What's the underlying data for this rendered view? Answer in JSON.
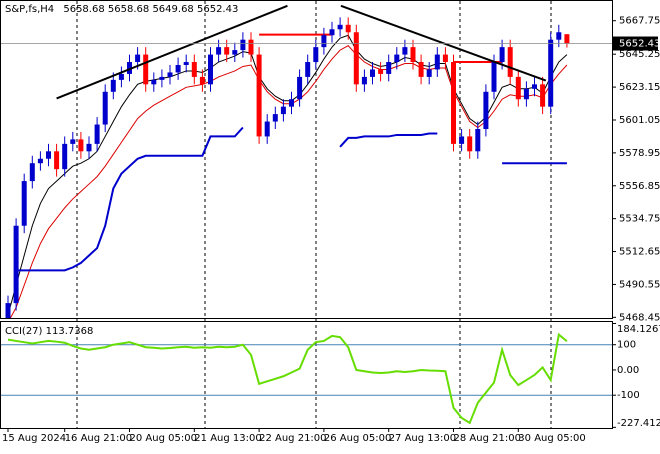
{
  "chart_data": [
    {
      "type": "candlestick",
      "title": "S&P,fs,H4",
      "categories": [
        "15 Aug 2024",
        null,
        null,
        null,
        null,
        null,
        null,
        "16 Aug 21:00",
        null,
        null,
        null,
        null,
        null,
        null,
        null,
        "20 Aug 05:00",
        null,
        null,
        null,
        null,
        null,
        null,
        null,
        "21 Aug 13:00",
        null,
        null,
        null,
        null,
        null,
        null,
        null,
        "22 Aug 21:00",
        null,
        null,
        null,
        null,
        null,
        null,
        null,
        "26 Aug 05:00",
        null,
        null,
        null,
        null,
        null,
        null,
        null,
        "27 Aug 13:00",
        null,
        null,
        null,
        null,
        null,
        null,
        null,
        "28 Aug 21:00",
        null,
        null,
        null,
        null,
        null,
        null,
        null,
        "30 Aug 05:00",
        null,
        null,
        null,
        null,
        null,
        null
      ],
      "open": [
        5465,
        5478,
        5530,
        5560,
        5572,
        5575,
        5580,
        5568,
        5585,
        5588,
        5580,
        5585,
        5598,
        5620,
        5628,
        5632,
        5640,
        5645,
        5625,
        5628,
        5630,
        5633,
        5638,
        5640,
        5630,
        5625,
        5645,
        5650,
        5645,
        5648,
        5655,
        5645,
        5590,
        5600,
        5605,
        5610,
        5615,
        5630,
        5640,
        5650,
        5658,
        5662,
        5665,
        5660,
        5625,
        5630,
        5635,
        5632,
        5640,
        5645,
        5650,
        5640,
        5630,
        5635,
        5645,
        5640,
        5585,
        5590,
        5580,
        5595,
        5620,
        5640,
        5650,
        5630,
        5615,
        5622,
        5625,
        5610,
        5655,
        5658.68
      ],
      "high": [
        5483,
        5535,
        5565,
        5577,
        5580,
        5585,
        5585,
        5590,
        5593,
        5593,
        5590,
        5603,
        5625,
        5633,
        5637,
        5645,
        5650,
        5650,
        5633,
        5635,
        5638,
        5643,
        5645,
        5645,
        5635,
        5650,
        5655,
        5655,
        5653,
        5660,
        5660,
        5650,
        5605,
        5610,
        5615,
        5620,
        5635,
        5645,
        5655,
        5663,
        5667,
        5670,
        5670,
        5665,
        5635,
        5640,
        5640,
        5645,
        5650,
        5655,
        5655,
        5645,
        5640,
        5650,
        5650,
        5645,
        5595,
        5595,
        5600,
        5625,
        5645,
        5655,
        5655,
        5635,
        5627,
        5630,
        5630,
        5660,
        5665,
        5658.68
      ],
      "low": [
        5460,
        5473,
        5525,
        5555,
        5567,
        5570,
        5563,
        5563,
        5580,
        5575,
        5575,
        5580,
        5593,
        5615,
        5623,
        5627,
        5635,
        5620,
        5620,
        5623,
        5625,
        5628,
        5633,
        5625,
        5620,
        5620,
        5640,
        5640,
        5640,
        5643,
        5640,
        5585,
        5585,
        5595,
        5600,
        5605,
        5610,
        5625,
        5635,
        5645,
        5653,
        5657,
        5655,
        5620,
        5620,
        5625,
        5627,
        5627,
        5635,
        5640,
        5635,
        5625,
        5625,
        5630,
        5635,
        5580,
        5580,
        5575,
        5575,
        5590,
        5615,
        5635,
        5625,
        5610,
        5610,
        5617,
        5605,
        5605,
        5650,
        5649.68
      ],
      "close": [
        5478,
        5530,
        5560,
        5572,
        5575,
        5580,
        5568,
        5585,
        5588,
        5580,
        5585,
        5598,
        5620,
        5628,
        5632,
        5640,
        5645,
        5625,
        5628,
        5630,
        5633,
        5638,
        5640,
        5630,
        5625,
        5645,
        5650,
        5645,
        5648,
        5655,
        5645,
        5590,
        5600,
        5605,
        5610,
        5615,
        5630,
        5640,
        5650,
        5658,
        5662,
        5665,
        5660,
        5625,
        5630,
        5635,
        5632,
        5640,
        5645,
        5650,
        5640,
        5630,
        5635,
        5645,
        5640,
        5585,
        5590,
        5580,
        5595,
        5620,
        5640,
        5650,
        5630,
        5615,
        5622,
        5625,
        5610,
        5655,
        5660,
        5652.43
      ],
      "up_color": "#0000cd",
      "down_color": "#ff0000",
      "overlays": [
        {
          "color": "#000000",
          "values": [
            5470,
            5490,
            5510,
            5530,
            5545,
            5555,
            5560,
            5565,
            5570,
            5572,
            5575,
            5580,
            5590,
            5600,
            5610,
            5618,
            5625,
            5627,
            5628,
            5629,
            5630,
            5632,
            5634,
            5634,
            5633,
            5636,
            5640,
            5642,
            5644,
            5647,
            5646,
            5630,
            5622,
            5617,
            5614,
            5614,
            5618,
            5625,
            5633,
            5642,
            5650,
            5656,
            5658,
            5648,
            5642,
            5639,
            5637,
            5638,
            5640,
            5643,
            5642,
            5638,
            5637,
            5639,
            5639,
            5622,
            5612,
            5602,
            5598,
            5603,
            5613,
            5623,
            5625,
            5622,
            5622,
            5623,
            5619,
            5630,
            5640,
            5645
          ]
        },
        {
          "color": "#dd0000",
          "values": [
            5465,
            5475,
            5490,
            5505,
            5518,
            5528,
            5535,
            5542,
            5548,
            5553,
            5558,
            5563,
            5570,
            5578,
            5586,
            5594,
            5602,
            5607,
            5611,
            5614,
            5617,
            5620,
            5623,
            5624,
            5625,
            5627,
            5630,
            5632,
            5634,
            5637,
            5638,
            5628,
            5620,
            5615,
            5612,
            5612,
            5615,
            5620,
            5627,
            5635,
            5642,
            5648,
            5651,
            5645,
            5640,
            5637,
            5635,
            5635,
            5637,
            5639,
            5639,
            5636,
            5635,
            5636,
            5636,
            5620,
            5610,
            5600,
            5596,
            5600,
            5607,
            5615,
            5618,
            5617,
            5617,
            5618,
            5616,
            5625,
            5632,
            5638
          ]
        },
        {
          "color": "#0000cd",
          "values": [
            null,
            5500,
            5500,
            5500,
            5500,
            5500,
            5500,
            5500,
            5502,
            5505,
            5510,
            5515,
            5530,
            5555,
            5565,
            5570,
            5575,
            5577,
            5577,
            5577,
            5577,
            5577,
            5577,
            5577,
            5577,
            5590,
            5590,
            5590,
            5590,
            5596,
            null,
            null,
            null,
            null,
            null,
            null,
            null,
            null,
            null,
            null,
            null,
            5583,
            5589,
            5589,
            5590,
            5590,
            5590,
            5590,
            5591,
            5591,
            5591,
            5591,
            5592,
            5592,
            null,
            null,
            null,
            null,
            null,
            null,
            null,
            5572,
            5572,
            5572,
            5572,
            5572,
            5572,
            5572,
            5572,
            5572
          ]
        },
        {
          "color": "#ff0000",
          "values": [
            null,
            null,
            null,
            null,
            null,
            null,
            null,
            null,
            null,
            null,
            null,
            null,
            null,
            null,
            null,
            null,
            null,
            null,
            null,
            null,
            null,
            null,
            null,
            null,
            null,
            null,
            null,
            null,
            null,
            null,
            null,
            5658.4,
            5658.4,
            5658.4,
            5658.4,
            5658.4,
            5658.4,
            5658.4,
            5658.4,
            5658.4,
            5658.4,
            null,
            null,
            null,
            null,
            null,
            null,
            null,
            null,
            null,
            null,
            null,
            null,
            null,
            null,
            5640,
            5640,
            5640,
            5640,
            5640,
            5640,
            5640,
            null,
            null,
            null,
            null,
            null,
            null,
            null,
            null
          ]
        }
      ],
      "trendlines": [
        {
          "x": [
            6,
            34.5
          ],
          "y": [
            5615.5,
            5677.8
          ]
        },
        {
          "x": [
            41.1,
            66.4
          ],
          "y": [
            5677.8,
            5627.5
          ]
        }
      ],
      "ylim": [
        5468,
        5681
      ],
      "yticks": [
        5667.75,
        5645.25,
        5623.15,
        5601.05,
        5578.95,
        5556.85,
        5534.75,
        5512.65,
        5490.55,
        5468.45
      ]
    },
    {
      "type": "line",
      "title": "CCI(27)",
      "color": "#66dd00",
      "values": [
        120,
        115,
        110,
        105,
        110,
        115,
        112,
        108,
        95,
        85,
        80,
        85,
        90,
        100,
        105,
        110,
        100,
        90,
        88,
        85,
        87,
        90,
        92,
        88,
        90,
        88,
        92,
        90,
        92,
        100,
        60,
        -55,
        -45,
        -35,
        -25,
        -10,
        5,
        80,
        110,
        115,
        135,
        130,
        90,
        0,
        -5,
        -10,
        -12,
        -10,
        -5,
        -8,
        -5,
        0,
        -2,
        -3,
        -5,
        -150,
        -190,
        -210,
        -130,
        -90,
        -50,
        80,
        -20,
        -60,
        -40,
        -20,
        10,
        -40,
        140,
        113.7368
      ],
      "level_lines": [
        100,
        -100
      ],
      "level_color": "#4682b4",
      "ylim": [
        -230,
        190
      ],
      "yticks": [
        184.1267,
        100,
        {
          "value": 0,
          "label": "0.00"
        },
        -100,
        -227.4128
      ]
    }
  ]
}
